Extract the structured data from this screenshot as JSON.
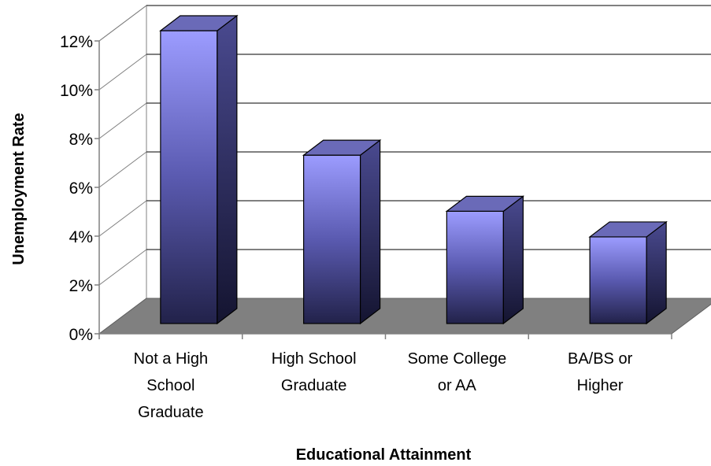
{
  "chart_data": {
    "type": "bar",
    "title": "",
    "xlabel": "Educational Attainment",
    "ylabel": "Unemployment Rate",
    "categories": [
      [
        "Not a High",
        "School",
        "Graduate"
      ],
      [
        "High School",
        "Graduate"
      ],
      [
        "Some College",
        "or AA"
      ],
      [
        "BA/BS or",
        "Higher"
      ]
    ],
    "values": [
      12.0,
      6.9,
      4.6,
      3.55
    ],
    "ylim": [
      0,
      12
    ],
    "yticks": [
      "0%",
      "2%",
      "4%",
      "6%",
      "8%",
      "10%",
      "12%"
    ],
    "grid": true,
    "legend": "none",
    "colors": {
      "bar_top": "#9999ff",
      "bar_bottom": "#202040",
      "bar_side": "#2a2a5a",
      "bar_cap": "#6a6ab8",
      "floor": "#808080",
      "wall": "#ffffff",
      "gridline": "#000000"
    }
  }
}
